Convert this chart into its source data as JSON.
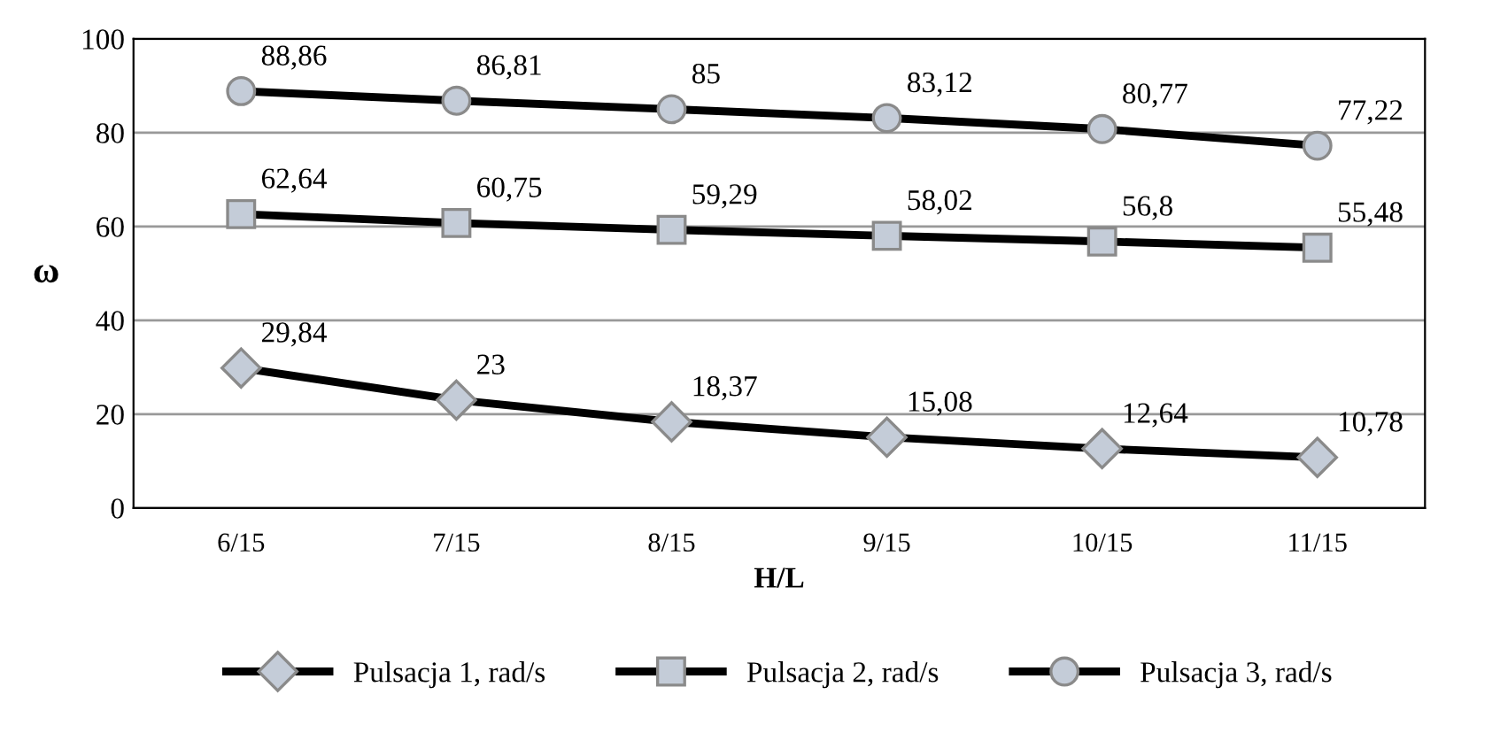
{
  "chart_data": {
    "type": "line",
    "xlabel": "H/L",
    "ylabel": "ω",
    "categories": [
      "6/15",
      "7/15",
      "8/15",
      "9/15",
      "10/15",
      "11/15"
    ],
    "series": [
      {
        "name": "Pulsacja 1, rad/s",
        "color": "#000000",
        "marker": "diamond",
        "values": [
          29.84,
          23,
          18.37,
          15.08,
          12.64,
          10.78
        ],
        "value_labels": [
          "29,84",
          "23",
          "18,37",
          "15,08",
          "12,64",
          "10,78"
        ]
      },
      {
        "name": "Pulsacja 2, rad/s",
        "color": "#000000",
        "marker": "square",
        "values": [
          62.64,
          60.75,
          59.29,
          58.02,
          56.8,
          55.48
        ],
        "value_labels": [
          "62,64",
          "60,75",
          "59,29",
          "58,02",
          "56,8",
          "55,48"
        ]
      },
      {
        "name": "Pulsacja 3, rad/s",
        "color": "#000000",
        "marker": "circle",
        "values": [
          88.86,
          86.81,
          85,
          83.12,
          80.77,
          77.22
        ],
        "value_labels": [
          "88,86",
          "86,81",
          "85",
          "83,12",
          "80,77",
          "77,22"
        ]
      }
    ],
    "ylim": [
      0,
      100
    ],
    "yticks": [
      0,
      20,
      40,
      60,
      80,
      100
    ],
    "grid": "y",
    "legend": "bottom",
    "line_style": "solid"
  }
}
